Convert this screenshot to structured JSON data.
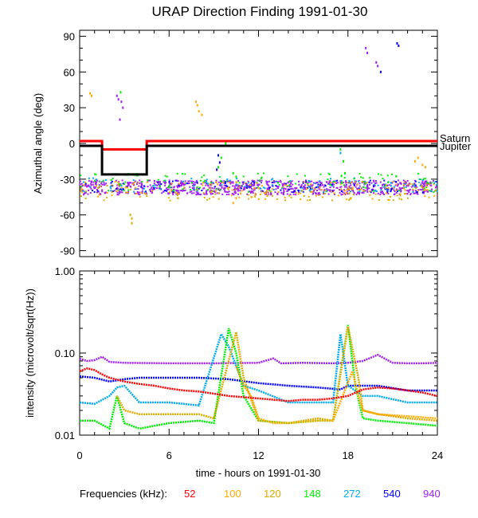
{
  "chart_data": [
    {
      "type": "scatter",
      "title": "URAP Direction Finding  1991-01-30",
      "ylabel": "Azimuthal angle (deg)",
      "xlim": [
        0,
        24
      ],
      "ylim": [
        -95,
        95
      ],
      "yticks": [
        "90",
        "60",
        "30",
        "0",
        "-30",
        "-60",
        "-90"
      ],
      "ytick_values": [
        90,
        60,
        30,
        0,
        -30,
        -60,
        -90
      ],
      "reference_lines": [
        {
          "name": "Saturn",
          "color": "#ff0000",
          "x": [
            0,
            1.5,
            1.5,
            4.5,
            4.5,
            24
          ],
          "y": [
            2,
            2,
            -5,
            -5,
            2,
            2
          ]
        },
        {
          "name": "Jupiter",
          "color": "#000000",
          "x": [
            0,
            1.5,
            1.5,
            4.5,
            4.5,
            24
          ],
          "y": [
            -2,
            -2,
            -26,
            -26,
            -2,
            -2
          ]
        }
      ],
      "series": [
        {
          "name": "940",
          "color": "#a020f0",
          "band_center": -37,
          "band_spread": 6
        },
        {
          "name": "540",
          "color": "#0000ff",
          "band_center": -36,
          "band_spread": 5
        },
        {
          "name": "272",
          "color": "#00aaee",
          "band_center": -35,
          "band_spread": 6
        },
        {
          "name": "148",
          "color": "#00ee00",
          "band_center": -33,
          "band_spread": 8
        },
        {
          "name": "120",
          "color": "#ddaa00",
          "band_center": -40,
          "band_spread": 8
        },
        {
          "name": "100",
          "color": "#ffaa00",
          "band_center": -40,
          "band_spread": 8
        }
      ],
      "scattered_points": [
        {
          "color": "#ffaa00",
          "x": [
            0.7,
            0.8
          ],
          "y": [
            42,
            40
          ]
        },
        {
          "color": "#a020f0",
          "x": [
            2.5,
            2.6,
            2.8,
            2.9,
            2.7
          ],
          "y": [
            40,
            37,
            35,
            30,
            20
          ]
        },
        {
          "color": "#00ee00",
          "x": [
            2.75
          ],
          "y": [
            43
          ]
        },
        {
          "color": "#ddaa00",
          "x": [
            3.4,
            3.5,
            3.5
          ],
          "y": [
            -60,
            -63,
            -67
          ]
        },
        {
          "color": "#ffaa00",
          "x": [
            7.8,
            7.9,
            8.0,
            8.2
          ],
          "y": [
            35,
            32,
            27,
            24
          ]
        },
        {
          "color": "#00ee00",
          "x": [
            9.3,
            9.5,
            9.8,
            10.3,
            10.5
          ],
          "y": [
            -20,
            -12,
            0,
            -25,
            -28
          ]
        },
        {
          "color": "#0000ff",
          "x": [
            9.3,
            9.4,
            9.2
          ],
          "y": [
            -10,
            -16,
            -22
          ]
        },
        {
          "color": "#ffaa00",
          "x": [
            10.3,
            10.5,
            10.8
          ],
          "y": [
            -50,
            -46,
            -42
          ]
        },
        {
          "color": "#00ee00",
          "x": [
            11.5
          ],
          "y": [
            2
          ]
        },
        {
          "color": "#00ee00",
          "x": [
            17.5,
            17.7,
            17.8,
            17.6
          ],
          "y": [
            -5,
            -15,
            -25,
            -33
          ]
        },
        {
          "color": "#00aaee",
          "x": [
            17.4,
            17.5
          ],
          "y": [
            -2,
            -8
          ]
        },
        {
          "color": "#ddaa00",
          "x": [
            18.1,
            18.2
          ],
          "y": [
            -42,
            -46
          ]
        },
        {
          "color": "#a020f0",
          "x": [
            19.2,
            19.3
          ],
          "y": [
            80,
            76
          ]
        },
        {
          "color": "#a020f0",
          "x": [
            19.9,
            20.0
          ],
          "y": [
            68,
            65
          ]
        },
        {
          "color": "#0000ff",
          "x": [
            20.2
          ],
          "y": [
            60
          ]
        },
        {
          "color": "#0000ff",
          "x": [
            21.3,
            21.4
          ],
          "y": [
            84,
            82
          ]
        },
        {
          "color": "#ffaa00",
          "x": [
            22.5,
            22.7,
            23.0,
            23.2
          ],
          "y": [
            -15,
            -12,
            -18,
            -20
          ]
        }
      ]
    },
    {
      "type": "line",
      "xlabel": "time - hours on 1991-01-30",
      "ylabel": "intensity (microvolt/sqrt(Hz))",
      "yscale": "log",
      "xlim": [
        0,
        24
      ],
      "ylim": [
        0.01,
        1.0
      ],
      "yticks": [
        "1.00",
        "0.10",
        "0.01"
      ],
      "ytick_values": [
        1.0,
        0.1,
        0.01
      ],
      "xticks": [
        "0",
        "6",
        "12",
        "18",
        "24"
      ],
      "xtick_values": [
        0,
        6,
        12,
        18,
        24
      ],
      "series": [
        {
          "name": "940",
          "color": "#a020f0",
          "x": [
            0,
            0.5,
            1,
            1.5,
            2,
            3,
            6,
            9,
            12,
            13,
            13.5,
            15,
            17,
            18,
            19,
            20,
            21,
            22,
            23,
            24
          ],
          "y": [
            0.085,
            0.08,
            0.082,
            0.09,
            0.078,
            0.076,
            0.075,
            0.075,
            0.076,
            0.086,
            0.075,
            0.076,
            0.075,
            0.076,
            0.08,
            0.095,
            0.076,
            0.075,
            0.075,
            0.076
          ]
        },
        {
          "name": "540",
          "color": "#0000ff",
          "x": [
            0,
            1,
            2,
            3,
            4,
            6,
            8,
            10,
            12,
            14,
            16,
            17.5,
            18,
            20,
            22,
            24
          ],
          "y": [
            0.052,
            0.05,
            0.045,
            0.048,
            0.05,
            0.05,
            0.05,
            0.048,
            0.043,
            0.04,
            0.038,
            0.036,
            0.04,
            0.04,
            0.035,
            0.035
          ]
        },
        {
          "name": "272",
          "color": "#00aaee",
          "x": [
            0,
            1,
            2,
            2.5,
            3,
            4,
            5,
            6,
            8,
            9.5,
            10,
            11,
            12,
            14,
            16,
            17,
            17.5,
            18,
            19,
            20,
            22,
            24
          ],
          "y": [
            0.025,
            0.024,
            0.03,
            0.038,
            0.04,
            0.025,
            0.025,
            0.025,
            0.023,
            0.17,
            0.12,
            0.04,
            0.035,
            0.025,
            0.025,
            0.025,
            0.17,
            0.04,
            0.03,
            0.03,
            0.025,
            0.025
          ]
        },
        {
          "name": "148",
          "color": "#00ee00",
          "x": [
            0,
            1,
            2,
            2.5,
            3,
            4,
            6,
            8,
            9,
            10,
            10.5,
            11,
            12,
            14,
            16,
            17,
            18,
            18.5,
            19,
            20,
            22,
            24
          ],
          "y": [
            0.015,
            0.015,
            0.012,
            0.03,
            0.014,
            0.012,
            0.014,
            0.015,
            0.014,
            0.2,
            0.1,
            0.03,
            0.015,
            0.014,
            0.015,
            0.015,
            0.22,
            0.04,
            0.016,
            0.015,
            0.014,
            0.013
          ]
        },
        {
          "name": "120",
          "color": "#ddaa00",
          "x": [
            2.5,
            3,
            4,
            6,
            8,
            9,
            10.5,
            11,
            12,
            14,
            16,
            17,
            18,
            18.7,
            19,
            20,
            22,
            24
          ],
          "y": [
            0.03,
            0.02,
            0.018,
            0.018,
            0.018,
            0.016,
            0.18,
            0.05,
            0.015,
            0.014,
            0.016,
            0.015,
            0.21,
            0.05,
            0.02,
            0.018,
            0.016,
            0.015
          ]
        },
        {
          "name": "100",
          "color": "#ffaa00",
          "x": [
            10.5,
            11,
            11.5,
            12,
            13,
            14,
            16,
            17,
            18.3,
            18.7,
            19,
            20,
            22,
            24
          ],
          "y": [
            0.07,
            0.04,
            0.03,
            0.016,
            0.014,
            0.014,
            0.015,
            0.015,
            0.06,
            0.03,
            0.02,
            0.018,
            0.017,
            0.016
          ]
        },
        {
          "name": "52",
          "color": "#ff0000",
          "x": [
            0,
            0.5,
            1,
            1.5,
            2,
            3,
            4,
            5,
            6,
            7,
            8,
            9,
            10,
            11,
            12,
            13,
            14,
            15,
            16,
            17,
            18,
            19,
            20,
            21,
            22,
            23,
            24
          ],
          "y": [
            0.06,
            0.065,
            0.062,
            0.055,
            0.05,
            0.045,
            0.042,
            0.04,
            0.037,
            0.035,
            0.034,
            0.032,
            0.03,
            0.029,
            0.028,
            0.027,
            0.026,
            0.027,
            0.027,
            0.028,
            0.03,
            0.036,
            0.038,
            0.037,
            0.035,
            0.033,
            0.03
          ]
        }
      ]
    }
  ],
  "legend": {
    "label": "Frequencies (kHz):",
    "items": [
      {
        "text": "52",
        "color": "#ff0000"
      },
      {
        "text": "100",
        "color": "#ffaa00"
      },
      {
        "text": "120",
        "color": "#ddaa00"
      },
      {
        "text": "148",
        "color": "#00ee00"
      },
      {
        "text": "272",
        "color": "#00aaee"
      },
      {
        "text": "540",
        "color": "#0000ff"
      },
      {
        "text": "940",
        "color": "#a020f0"
      }
    ]
  },
  "line_labels": {
    "saturn": "Saturn",
    "jupiter": "Jupiter"
  }
}
